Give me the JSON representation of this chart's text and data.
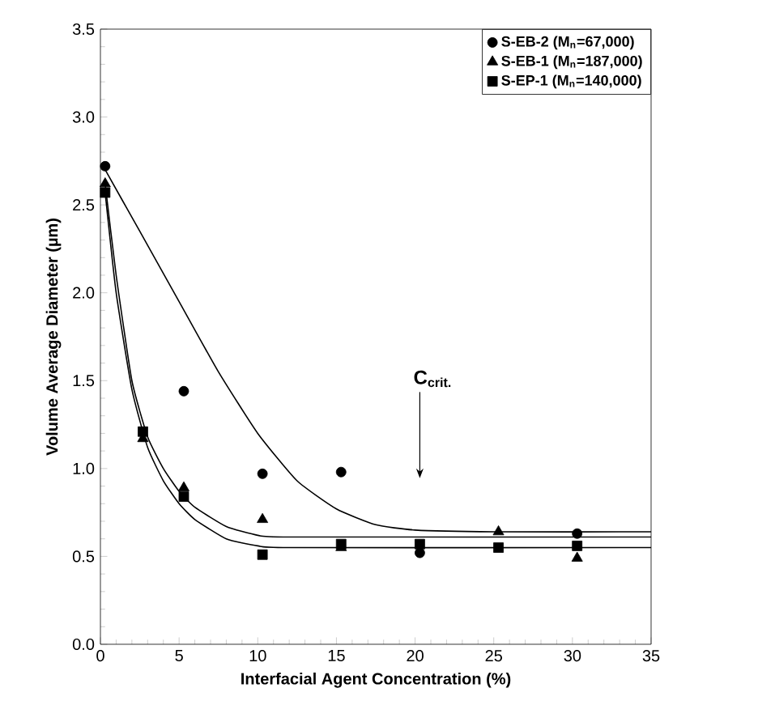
{
  "chart_data": {
    "type": "scatter",
    "xlabel": "Interfacial Agent Concentration (%)",
    "ylabel": "Volume Average Diameter (µm)",
    "xlim": [
      0,
      35
    ],
    "ylim": [
      0,
      3.5
    ],
    "xticks": [
      0,
      5,
      10,
      15,
      20,
      25,
      30,
      35
    ],
    "yticks": [
      {
        "value": 0,
        "label": "0.0"
      },
      {
        "value": 0.5,
        "label": "0.5"
      },
      {
        "value": 1,
        "label": "1.0"
      },
      {
        "value": 1.5,
        "label": "1.5"
      },
      {
        "value": 2,
        "label": "2.0"
      },
      {
        "value": 2.5,
        "label": "2.5"
      },
      {
        "value": 3,
        "label": "3.0"
      },
      {
        "value": 3.5,
        "label": "3.5"
      }
    ],
    "grid": false,
    "legend": "top right",
    "annotations": [
      "C$_{crit.}$"
    ],
    "series": [
      {
        "name": "S-EB-2 (M$_{n}$=67,000)",
        "color": "#000000",
        "marker": "circle",
        "x": [
          0.3,
          5.3,
          10.3,
          15.3,
          20.3,
          30.3
        ],
        "values": [
          2.72,
          1.44,
          0.97,
          0.98,
          0.52,
          0.63
        ]
      },
      {
        "name": "S-EB-1 (M$_{n}$=187,000)",
        "color": "#000000",
        "marker": "triangle",
        "x": [
          0.3,
          2.7,
          5.3,
          10.3,
          15.3,
          25.3,
          30.3
        ],
        "values": [
          2.62,
          1.17,
          0.89,
          0.71,
          0.55,
          0.64,
          0.49
        ]
      },
      {
        "name": "S-EP-1 (M$_{n}$=140,000)",
        "color": "#000000",
        "marker": "square",
        "x": [
          0.3,
          2.7,
          5.3,
          10.3,
          15.3,
          20.3,
          25.3,
          30.3
        ],
        "values": [
          2.57,
          1.21,
          0.84,
          0.51,
          0.57,
          0.57,
          0.55,
          0.56
        ]
      },
      {
        "type": "line",
        "color": "#000000",
        "marker": "none",
        "x": [
          0.3,
          2.5,
          5,
          7.5,
          10,
          12.5,
          15,
          17.5,
          20,
          25,
          35
        ],
        "values": [
          2.7,
          2.35,
          1.95,
          1.55,
          1.2,
          0.93,
          0.77,
          0.68,
          0.65,
          0.64,
          0.64
        ]
      },
      {
        "type": "line",
        "color": "#000000",
        "marker": "none",
        "x": [
          0.3,
          1,
          2,
          3,
          4,
          5,
          6,
          8,
          10,
          12,
          35
        ],
        "values": [
          2.62,
          2.1,
          1.5,
          1.18,
          1.0,
          0.87,
          0.78,
          0.67,
          0.62,
          0.61,
          0.61
        ]
      },
      {
        "type": "line",
        "color": "#000000",
        "marker": "none",
        "x": [
          0.3,
          1,
          2,
          3,
          4,
          5,
          6,
          8,
          10,
          12,
          35
        ],
        "values": [
          2.57,
          2.0,
          1.45,
          1.12,
          0.93,
          0.8,
          0.71,
          0.6,
          0.56,
          0.55,
          0.55
        ]
      }
    ]
  }
}
